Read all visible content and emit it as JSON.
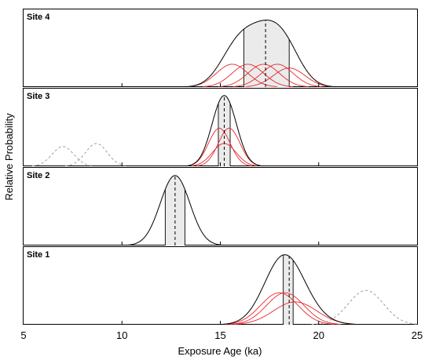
{
  "chart_data": {
    "type": "area",
    "xlabel": "Exposure Age (ka)",
    "ylabel": "Relative Probability",
    "xlim": [
      5,
      25
    ],
    "xticks": [
      5,
      10,
      15,
      20,
      25
    ],
    "xtick_labels": [
      "5",
      "10",
      "15",
      "20",
      "25"
    ],
    "grid": false,
    "colors": {
      "summary_curve": "#000000",
      "individual_curve": "#e8262b",
      "outlier_curve": "#9a9a9a",
      "band_fill": "#ebebeb",
      "median_line": "#000000"
    },
    "panels": [
      {
        "label": "Site 4",
        "band": [
          16.2,
          18.5
        ],
        "median": 17.3,
        "individual": [
          {
            "mu": 15.6,
            "sigma": 0.8,
            "peak": 0.3
          },
          {
            "mu": 16.4,
            "sigma": 0.8,
            "peak": 0.3
          },
          {
            "mu": 17.2,
            "sigma": 0.8,
            "peak": 0.3
          },
          {
            "mu": 17.9,
            "sigma": 0.8,
            "peak": 0.3
          },
          {
            "mu": 18.5,
            "sigma": 0.8,
            "peak": 0.25
          }
        ],
        "summary": {
          "peak": 0.88
        },
        "outliers": []
      },
      {
        "label": "Site 3",
        "band": [
          14.9,
          15.5
        ],
        "median": 15.2,
        "individual": [
          {
            "mu": 14.95,
            "sigma": 0.55,
            "peak": 0.5
          },
          {
            "mu": 15.45,
            "sigma": 0.55,
            "peak": 0.5
          },
          {
            "mu": 15.2,
            "sigma": 0.6,
            "peak": 0.3
          }
        ],
        "summary": {
          "peak": 0.93
        },
        "outliers": [
          {
            "mu": 7.0,
            "sigma": 0.55,
            "peak": 0.26
          },
          {
            "mu": 8.7,
            "sigma": 0.55,
            "peak": 0.3
          }
        ]
      },
      {
        "label": "Site 2",
        "band": [
          12.2,
          13.2
        ],
        "median": 12.7,
        "individual": [],
        "summary": {
          "mu": 12.7,
          "sigma": 0.75,
          "peak": 0.92
        },
        "outliers": []
      },
      {
        "label": "Site 1",
        "band": [
          18.2,
          18.7
        ],
        "median": 18.5,
        "individual": [
          {
            "mu": 18.0,
            "sigma": 0.95,
            "peak": 0.42
          },
          {
            "mu": 18.3,
            "sigma": 0.95,
            "peak": 0.42
          },
          {
            "mu": 18.8,
            "sigma": 1.1,
            "peak": 0.3
          }
        ],
        "summary": {
          "peak": 0.92
        },
        "outliers": [
          {
            "mu": 22.4,
            "sigma": 0.9,
            "peak": 0.45
          }
        ]
      }
    ]
  }
}
